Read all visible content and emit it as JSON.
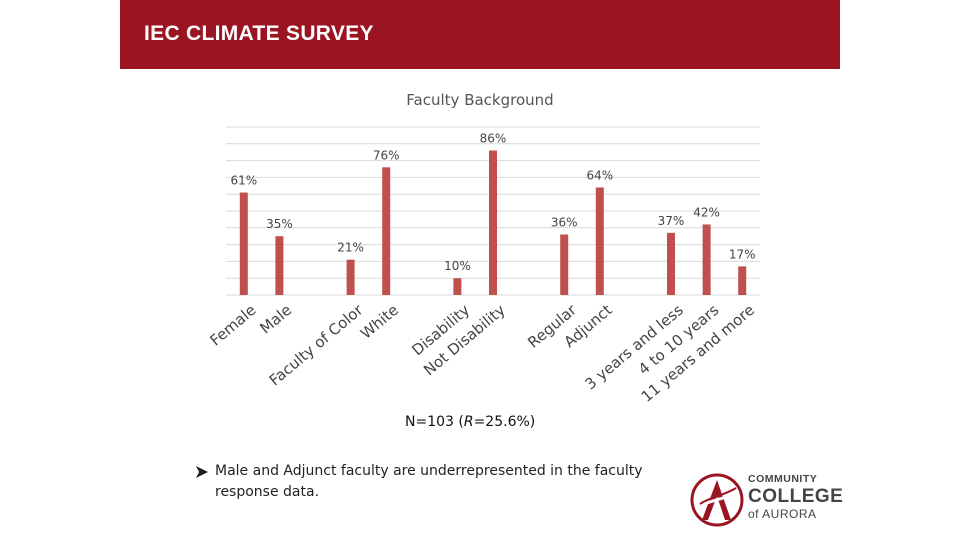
{
  "header": {
    "title": "IEC CLIMATE SURVEY"
  },
  "chart_data": {
    "type": "bar",
    "title": "Faculty Background",
    "ylim": [
      0,
      100
    ],
    "grid": true,
    "bar_color": "#c0504d",
    "groups": [
      {
        "categories": [
          "Female",
          "Male"
        ],
        "values": [
          61,
          35
        ]
      },
      {
        "categories": [
          "Faculty of Color",
          "White"
        ],
        "values": [
          21,
          76
        ]
      },
      {
        "categories": [
          "Disability",
          "Not Disability"
        ],
        "values": [
          10,
          86
        ]
      },
      {
        "categories": [
          "Regular",
          "Adjunct"
        ],
        "values": [
          36,
          64
        ]
      },
      {
        "categories": [
          "3 years and less",
          "4 to 10 years",
          "11 years and more"
        ],
        "values": [
          37,
          42,
          17
        ]
      }
    ]
  },
  "note": {
    "n_text": "N=103 (",
    "r_text": "R",
    "r_value": "=25.6%)"
  },
  "bullet": {
    "text": "Male and Adjunct faculty are underrepresented in the faculty response data."
  },
  "logo": {
    "line1": "COMMUNITY",
    "line2": "COLLEGE",
    "line3": "of AURORA",
    "accent_color": "#9b1422"
  }
}
